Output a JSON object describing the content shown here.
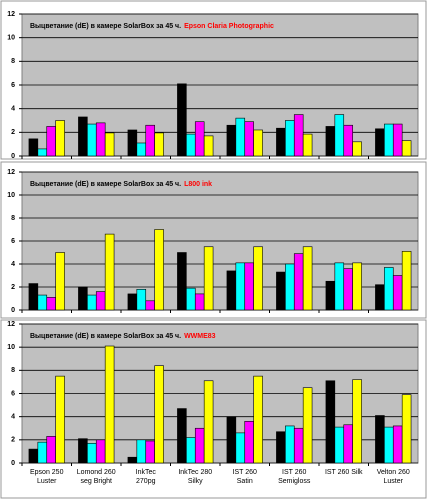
{
  "chart_data": [
    {
      "type": "bar",
      "title": "Выцветание (dE) в камере SolarBox за 45 ч.",
      "subtitle": "Epson Claria Photographic",
      "categories": [
        null,
        null,
        null,
        null,
        null,
        null,
        null,
        null
      ],
      "series": [
        {
          "color": "#000000",
          "values": [
            1.45,
            3.3,
            2.2,
            6.1,
            2.6,
            2.35,
            2.5,
            2.3
          ]
        },
        {
          "color": "#00ffff",
          "values": [
            0.6,
            2.7,
            1.1,
            1.85,
            3.2,
            3.0,
            3.5,
            2.7
          ]
        },
        {
          "color": "#ff00ff",
          "values": [
            2.5,
            2.8,
            2.6,
            2.9,
            2.9,
            3.5,
            2.6,
            2.7
          ]
        },
        {
          "color": "#ffff00",
          "values": [
            3.0,
            1.95,
            1.95,
            1.7,
            2.2,
            1.85,
            1.2,
            1.3
          ]
        }
      ],
      "ylim": [
        0,
        12
      ],
      "yticks": [
        0,
        2,
        4,
        6,
        8,
        10,
        12
      ],
      "grid": true
    },
    {
      "type": "bar",
      "title": "Выцветание (dE) в камере SolarBox за 45 ч.",
      "subtitle": "L800 ink",
      "categories": [
        null,
        null,
        null,
        null,
        null,
        null,
        null,
        null
      ],
      "series": [
        {
          "color": "#000000",
          "values": [
            2.3,
            2.0,
            1.4,
            5.0,
            3.4,
            3.3,
            2.5,
            2.2
          ]
        },
        {
          "color": "#00ffff",
          "values": [
            1.3,
            1.3,
            1.8,
            1.9,
            4.1,
            4.0,
            4.1,
            3.7
          ]
        },
        {
          "color": "#ff00ff",
          "values": [
            1.1,
            1.6,
            0.8,
            1.4,
            4.1,
            4.9,
            3.6,
            3.0
          ]
        },
        {
          "color": "#ffff00",
          "values": [
            5.0,
            6.6,
            7.0,
            5.5,
            5.5,
            5.5,
            4.1,
            5.1
          ]
        }
      ],
      "ylim": [
        0,
        12
      ],
      "yticks": [
        0,
        2,
        4,
        6,
        8,
        10,
        12
      ],
      "grid": true
    },
    {
      "type": "bar",
      "title": "Выцветание (dE) в камере SolarBox за 45 ч.",
      "subtitle": "WWME83",
      "categories": [
        "Epson 250 Luster",
        "Lomond 260 seg Bright",
        "InkTec 270pg",
        "InkTec 280 Silky",
        "IST 260 Satin",
        "IST 260 Semigloss",
        "IST 260 Silk",
        "Velton 260 Luster"
      ],
      "series": [
        {
          "color": "#000000",
          "values": [
            1.2,
            2.1,
            0.5,
            4.7,
            4.0,
            2.7,
            7.1,
            4.1
          ]
        },
        {
          "color": "#00ffff",
          "values": [
            1.8,
            1.7,
            2.0,
            2.2,
            2.6,
            3.2,
            3.1,
            3.1
          ]
        },
        {
          "color": "#ff00ff",
          "values": [
            2.3,
            2.0,
            1.9,
            3.0,
            3.6,
            3.0,
            3.3,
            3.2
          ]
        },
        {
          "color": "#ffff00",
          "values": [
            7.5,
            10.1,
            8.4,
            7.1,
            7.5,
            6.5,
            7.2,
            5.9
          ]
        }
      ],
      "ylim": [
        0,
        12
      ],
      "yticks": [
        0,
        2,
        4,
        6,
        8,
        10,
        12
      ],
      "grid": true
    }
  ]
}
